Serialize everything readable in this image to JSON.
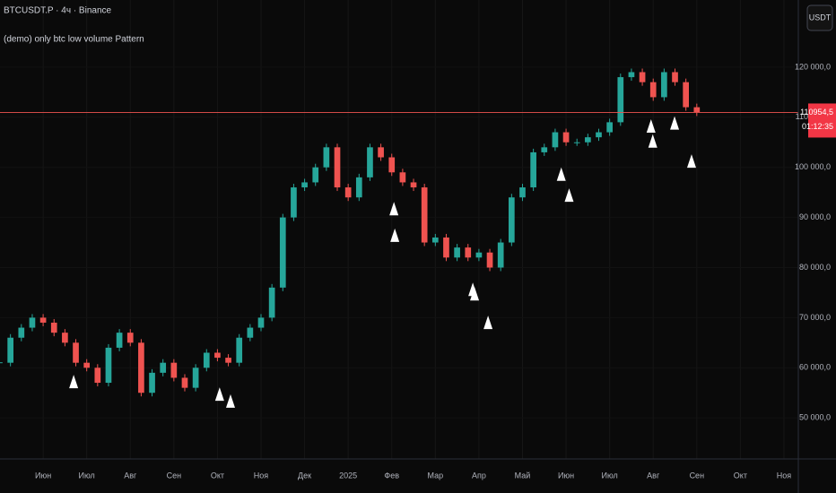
{
  "chart_data": {
    "type": "candlestick",
    "title": "BTCUSDT.P · 4ч · Binance",
    "subtitle": "(demo) only btc low volume Pattern",
    "currency": "USDT",
    "up_color": "#26a69a",
    "down_color": "#ef5350",
    "marker_color": "#ffffff",
    "x": [
      -1.0,
      -0.75,
      -0.5,
      -0.25,
      0,
      0.25,
      0.5,
      0.75,
      1.0,
      1.25,
      1.5,
      1.75,
      2.0,
      2.25,
      2.5,
      2.75,
      3.0,
      3.25,
      3.5,
      3.75,
      4.0,
      4.25,
      4.5,
      4.75,
      5.0,
      5.25,
      5.5,
      5.75,
      6.0,
      6.25,
      6.5,
      6.75,
      7.0,
      7.25,
      7.5,
      7.75,
      8.0,
      8.25,
      8.5,
      8.75,
      9.0,
      9.25,
      9.5,
      9.75,
      10.0,
      10.25,
      10.5,
      10.75,
      11.0,
      11.25,
      11.5,
      11.75,
      12.0,
      12.25,
      12.5,
      12.75,
      13.0,
      13.25,
      13.5,
      13.75,
      14.0,
      14.25,
      14.5,
      14.75,
      15.0
    ],
    "values": [
      61000,
      66000,
      68000,
      70000,
      69000,
      67000,
      65000,
      61000,
      60000,
      57000,
      64000,
      67000,
      65000,
      55000,
      59000,
      61000,
      58000,
      56000,
      60000,
      63000,
      62000,
      61000,
      66000,
      68000,
      70000,
      76000,
      90000,
      96000,
      97000,
      100000,
      104000,
      96000,
      94000,
      98000,
      104000,
      102000,
      99000,
      97000,
      96000,
      85000,
      86000,
      82000,
      84000,
      82000,
      83000,
      80000,
      85000,
      94000,
      96000,
      103000,
      104000,
      107000,
      105000,
      105000,
      106000,
      107000,
      109000,
      118000,
      119000,
      117000,
      114000,
      119000,
      117000,
      112000,
      110954.5
    ],
    "markers": {
      "x": [
        0.7,
        4.05,
        4.3,
        8.05,
        8.07,
        9.86,
        9.9,
        10.21,
        11.89,
        12.07,
        13.95,
        13.99,
        14.49,
        14.88
      ],
      "values": [
        58600,
        56100,
        54700,
        93100,
        87800,
        77000,
        76100,
        70400,
        100000,
        95800,
        109600,
        106600,
        110200,
        102600
      ]
    },
    "last_price": {
      "value": 110954.5,
      "label": "110954,5"
    },
    "countdown": "01:12:35",
    "xlim": [
      -0.99,
      17.33
    ],
    "xticks": [
      {
        "value": 0,
        "label": "Июн"
      },
      {
        "value": 1,
        "label": "Июл"
      },
      {
        "value": 2,
        "label": "Авг"
      },
      {
        "value": 3,
        "label": "Сен"
      },
      {
        "value": 4,
        "label": "Окт"
      },
      {
        "value": 5,
        "label": "Ноя"
      },
      {
        "value": 6,
        "label": "Дек"
      },
      {
        "value": 7,
        "label": "2025"
      },
      {
        "value": 8,
        "label": "Фев"
      },
      {
        "value": 9,
        "label": "Мар"
      },
      {
        "value": 10,
        "label": "Апр"
      },
      {
        "value": 11,
        "label": "Май"
      },
      {
        "value": 12,
        "label": "Июн"
      },
      {
        "value": 13,
        "label": "Июл"
      },
      {
        "value": 14,
        "label": "Авг"
      },
      {
        "value": 15,
        "label": "Сен"
      },
      {
        "value": 16,
        "label": "Окт"
      },
      {
        "value": 17,
        "label": "Ноя"
      }
    ],
    "ylim": [
      41800,
      133400
    ],
    "yticks": [
      {
        "value": 50000,
        "label": "50 000,0"
      },
      {
        "value": 60000,
        "label": "60 000,0"
      },
      {
        "value": 70000,
        "label": "70 000,0"
      },
      {
        "value": 80000,
        "label": "80 000,0"
      },
      {
        "value": 90000,
        "label": "90 000,0"
      },
      {
        "value": 100000,
        "label": "100 000,0"
      },
      {
        "value": 110000,
        "label": "110 000,0"
      },
      {
        "value": 120000,
        "label": "120 000,0"
      }
    ],
    "grid": true
  }
}
